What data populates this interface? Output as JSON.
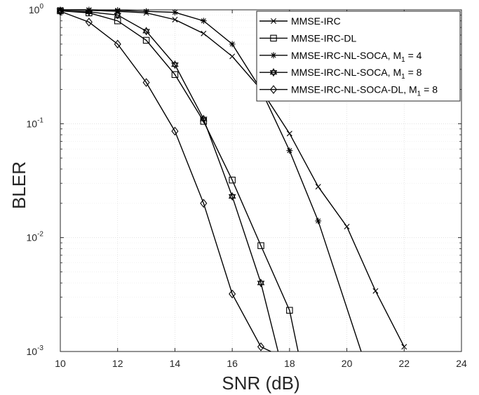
{
  "chart_data": {
    "type": "line",
    "xlabel": "SNR (dB)",
    "ylabel": "BLER",
    "xlim": [
      10,
      24
    ],
    "ylim": [
      0.001,
      1
    ],
    "yscale": "log",
    "grid": true,
    "legend_position": "top-right",
    "x_ticks": [
      "10",
      "12",
      "14",
      "16",
      "18",
      "20",
      "22",
      "24"
    ],
    "y_ticks": [
      {
        "base": "10",
        "exp": "0"
      },
      {
        "base": "10",
        "exp": "-1"
      },
      {
        "base": "10",
        "exp": "-2"
      },
      {
        "base": "10",
        "exp": "-3"
      }
    ],
    "series": [
      {
        "name": "MMSE-IRC",
        "marker": "x",
        "x": [
          10,
          11,
          12,
          13,
          14,
          15,
          16,
          17,
          18,
          19,
          20,
          21,
          22
        ],
        "y": [
          1.0,
          0.99,
          0.97,
          0.94,
          0.82,
          0.62,
          0.39,
          0.2,
          0.082,
          0.028,
          0.0125,
          0.0034,
          0.0011
        ]
      },
      {
        "name": "MMSE-IRC-DL",
        "marker": "square",
        "x": [
          10,
          11,
          12,
          13,
          14,
          15,
          16,
          17,
          18,
          18.3
        ],
        "y": [
          0.98,
          0.94,
          0.8,
          0.54,
          0.27,
          0.105,
          0.032,
          0.0085,
          0.0023,
          0.001
        ]
      },
      {
        "name": "MMSE-IRC-NL-SOCA, M",
        "sub": "1",
        "suffix": " = 4",
        "marker": "asterisk",
        "x": [
          10,
          11,
          12,
          13,
          14,
          15,
          16,
          17,
          18,
          19,
          20.5
        ],
        "y": [
          1.0,
          1.0,
          0.99,
          0.97,
          0.95,
          0.8,
          0.5,
          0.2,
          0.058,
          0.014,
          0.001
        ]
      },
      {
        "name": "MMSE-IRC-NL-SOCA, M",
        "sub": "1",
        "suffix": " = 8",
        "marker": "hexagram",
        "x": [
          10,
          11,
          12,
          13,
          14,
          15,
          16,
          17,
          17.6
        ],
        "y": [
          0.98,
          0.96,
          0.9,
          0.65,
          0.33,
          0.11,
          0.023,
          0.004,
          0.001
        ]
      },
      {
        "name": "MMSE-IRC-NL-SOCA-DL, M",
        "sub": "1",
        "suffix": " = 8",
        "marker": "diamond",
        "x": [
          10,
          11,
          12,
          13,
          14,
          15,
          16,
          17,
          17.35
        ],
        "y": [
          0.97,
          0.78,
          0.5,
          0.23,
          0.086,
          0.02,
          0.0032,
          0.0011,
          0.001
        ]
      }
    ]
  }
}
